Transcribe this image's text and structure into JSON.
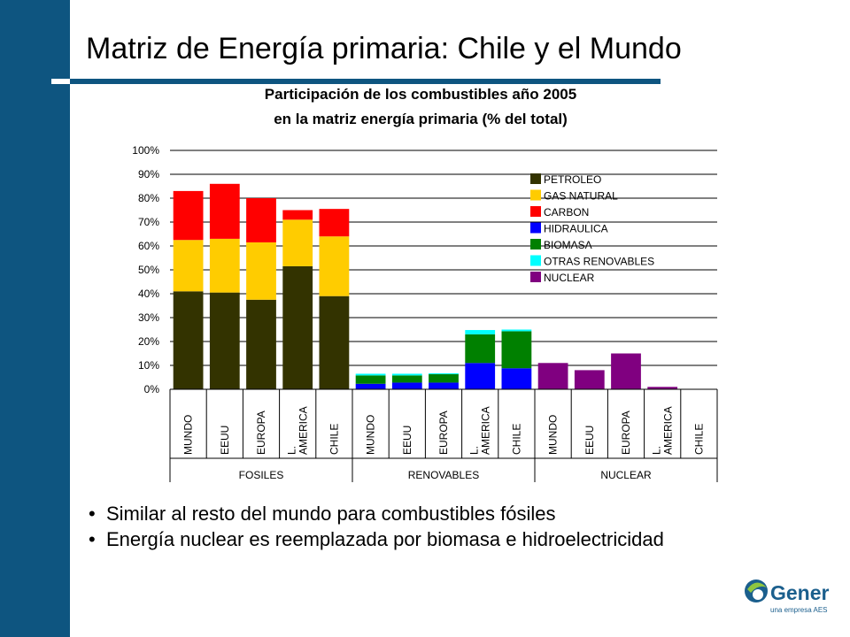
{
  "slide": {
    "title": "Matriz de Energía primaria: Chile y el Mundo",
    "bullets": [
      "Similar al resto del mundo para combustibles fósiles",
      "Energía nuclear es reemplazada por biomasa e hidroelectricidad"
    ],
    "logo": {
      "name": "Gener",
      "tagline": "una empresa AES"
    }
  },
  "chart_data": {
    "type": "bar",
    "stacked": true,
    "title_lines": [
      "Participación de los combustibles año 2005",
      "en la matriz energía primaria (% del total)"
    ],
    "groups": [
      {
        "name": "FOSILES",
        "categories": [
          "MUNDO",
          "EEUU",
          "EUROPA",
          "L. AMERICA",
          "CHILE"
        ]
      },
      {
        "name": "RENOVABLES",
        "categories": [
          "MUNDO",
          "EEUU",
          "EUROPA",
          "L. AMERICA",
          "CHILE"
        ]
      },
      {
        "name": "NUCLEAR",
        "categories": [
          "MUNDO",
          "EEUU",
          "EUROPA",
          "L. AMERICA",
          "CHILE"
        ]
      }
    ],
    "series": [
      {
        "name": "PETROLEO",
        "color": "#333300",
        "values": [
          41,
          40.5,
          37.5,
          51.5,
          39,
          0,
          0,
          0,
          0,
          0,
          0,
          0,
          0,
          0,
          0
        ]
      },
      {
        "name": "GAS NATURAL",
        "color": "#ffcc00",
        "values": [
          21.5,
          22.5,
          24,
          19.5,
          25,
          0,
          0,
          0,
          0,
          0,
          0,
          0,
          0,
          0,
          0
        ]
      },
      {
        "name": "CARBON",
        "color": "#ff0000",
        "values": [
          20.5,
          23,
          18.5,
          4,
          11.5,
          0,
          0,
          0,
          0,
          0,
          0,
          0,
          0,
          0,
          0
        ]
      },
      {
        "name": "HIDRAULICA",
        "color": "#0000ff",
        "values": [
          0,
          0,
          0,
          0,
          0,
          2.3,
          2.8,
          2.8,
          11,
          8.8,
          0,
          0,
          0,
          0,
          0
        ]
      },
      {
        "name": "BIOMASA",
        "color": "#008000",
        "values": [
          0,
          0,
          0,
          0,
          0,
          3.5,
          3,
          3.5,
          12,
          15.5,
          0,
          0,
          0,
          0,
          0
        ]
      },
      {
        "name": "OTRAS RENOVABLES",
        "color": "#00ffff",
        "values": [
          0,
          0,
          0,
          0,
          0,
          0.7,
          0.7,
          0.4,
          1.8,
          0.7,
          0,
          0,
          0,
          0,
          0
        ]
      },
      {
        "name": "NUCLEAR",
        "color": "#800080",
        "values": [
          0,
          0,
          0,
          0,
          0,
          0,
          0,
          0,
          0,
          0,
          11,
          8,
          15,
          1,
          0
        ]
      }
    ],
    "y_ticks": [
      "0%",
      "10%",
      "20%",
      "30%",
      "40%",
      "50%",
      "60%",
      "70%",
      "80%",
      "90%",
      "100%"
    ],
    "ylim": [
      0,
      100
    ],
    "grid": true,
    "legend_position": "top-right"
  }
}
